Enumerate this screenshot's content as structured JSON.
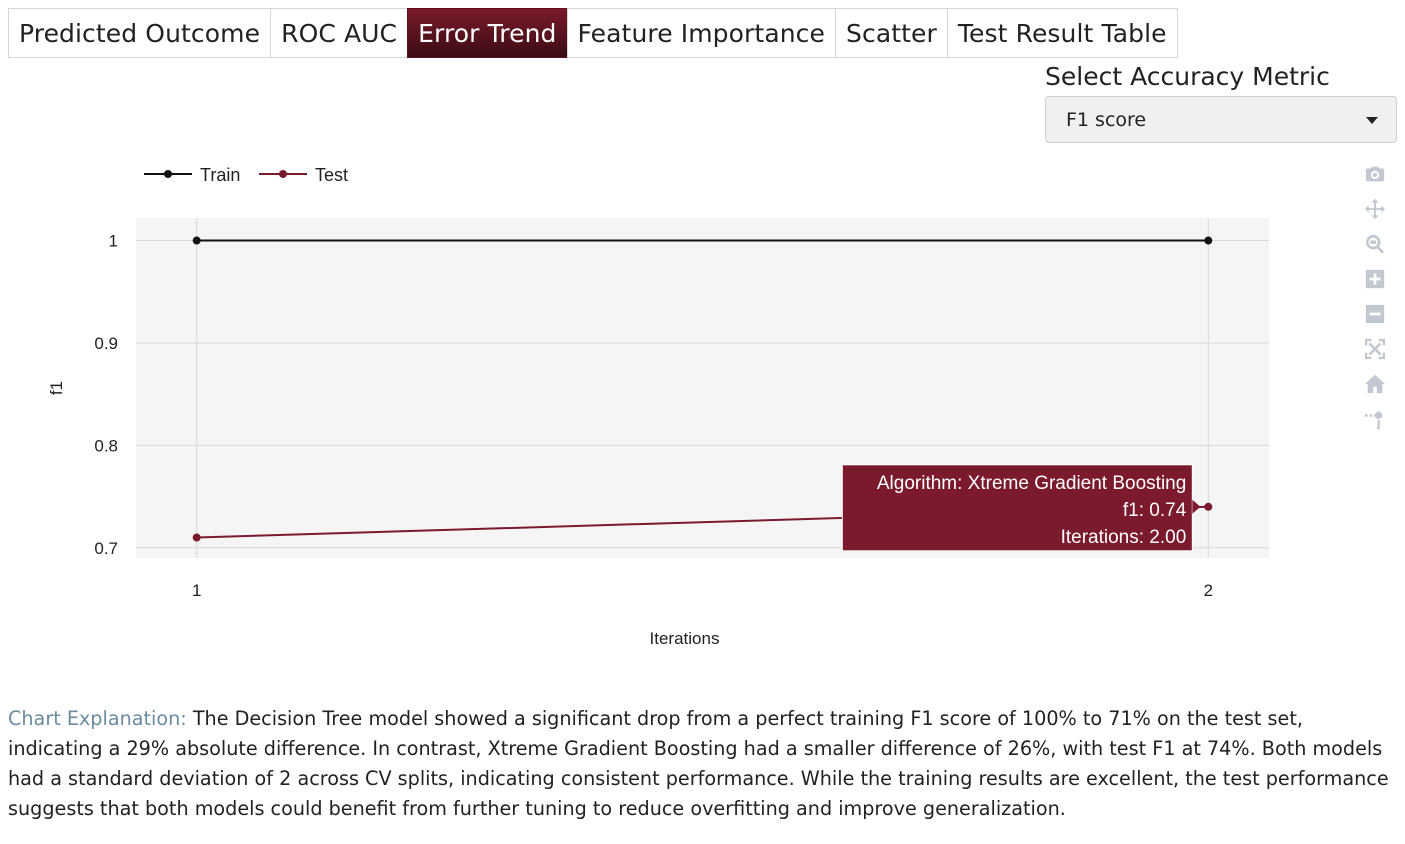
{
  "tabs": [
    {
      "label": "Predicted Outcome",
      "active": false
    },
    {
      "label": "ROC AUC",
      "active": false
    },
    {
      "label": "Error Trend",
      "active": true
    },
    {
      "label": "Feature Importance",
      "active": false
    },
    {
      "label": "Scatter",
      "active": false
    },
    {
      "label": "Test Result Table",
      "active": false
    }
  ],
  "metric_selector": {
    "label": "Select Accuracy Metric",
    "selected": "F1 score"
  },
  "modebar": [
    "camera-icon",
    "pan-icon",
    "zoom-icon",
    "zoom-in-icon",
    "zoom-out-icon",
    "autoscale-icon",
    "home-icon",
    "spike-lines-icon"
  ],
  "chart_data": {
    "type": "line",
    "title": "",
    "xlabel": "Iterations",
    "ylabel": "f1",
    "x": [
      1,
      2
    ],
    "x_ticks": [
      "1",
      "2"
    ],
    "y_ticks": [
      "0.7",
      "0.8",
      "0.9",
      "1"
    ],
    "ylim": [
      0.69,
      1.022
    ],
    "xlim": [
      0.94,
      2.06
    ],
    "grid": true,
    "legend_position": "top-left",
    "series": [
      {
        "name": "Train",
        "values": [
          1.0,
          1.0
        ],
        "color": "#111111"
      },
      {
        "name": "Test",
        "values": [
          0.71,
          0.74
        ],
        "color": "#7b1a2c"
      }
    ],
    "tooltip": {
      "series_index": 1,
      "point_index": 1,
      "lines": [
        "Algorithm: Xtreme Gradient Boosting",
        "f1: 0.74",
        "Iterations: 2.00"
      ],
      "color": "#7b1a2c"
    }
  },
  "explanation": {
    "lead": "Chart Explanation:",
    "text": " The Decision Tree model showed a significant drop from a perfect training F1 score of 100% to 71% on the test set, indicating a 29% absolute difference. In contrast, Xtreme Gradient Boosting had a smaller difference of 26%, with test F1 at 74%. Both models had a standard deviation of 2 across CV splits, indicating consistent performance. While the training results are excellent, the test performance suggests that both models could benefit from further tuning to reduce overfitting and improve generalization."
  }
}
